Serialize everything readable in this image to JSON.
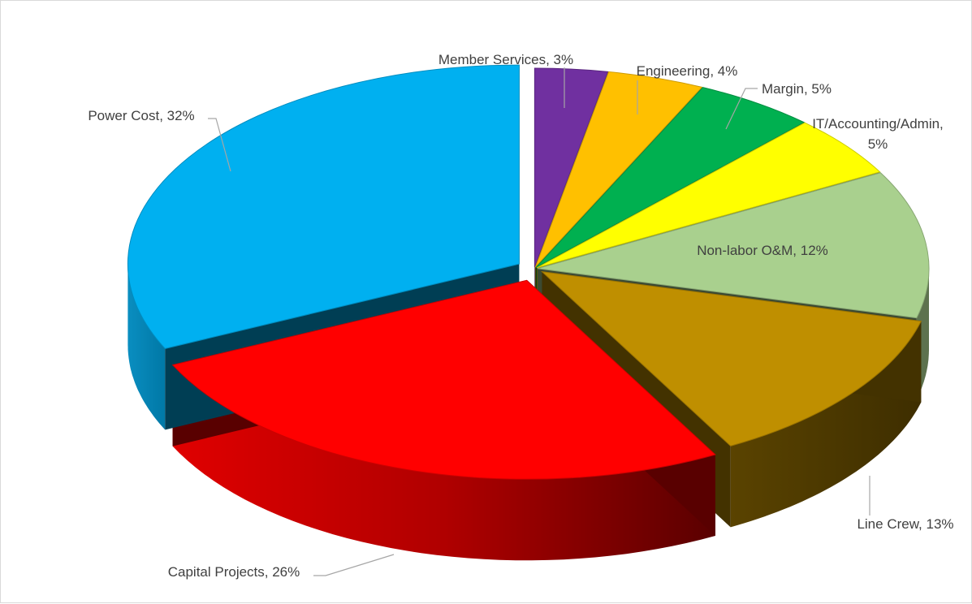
{
  "chart_data": {
    "type": "pie",
    "style": "3d-exploded",
    "legend": "none",
    "labels": [
      {
        "name": "Member Services",
        "percent": 3,
        "color": "#7030a0"
      },
      {
        "name": "Engineering",
        "percent": 4,
        "color": "#ffc000"
      },
      {
        "name": "Margin",
        "percent": 5,
        "color": "#00b050"
      },
      {
        "name": "IT/Accounting/Admin",
        "percent": 5,
        "color": "#ffff00"
      },
      {
        "name": "Non-labor O&M",
        "percent": 12,
        "color": "#a9d08e"
      },
      {
        "name": "Line Crew",
        "percent": 13,
        "color": "#bf8f00"
      },
      {
        "name": "Capital Projects",
        "percent": 26,
        "color": "#ff0000"
      },
      {
        "name": "Power Cost",
        "percent": 32,
        "color": "#00b0f0"
      }
    ],
    "data_labels": [
      "Member Services, 3%",
      "Engineering, 4%",
      "Margin, 5%",
      "IT/Accounting/Admin,",
      "5%",
      "Non-labor O&M, 12%",
      "Line Crew, 13%",
      "Capital Projects, 26%",
      "Power Cost, 32%"
    ]
  }
}
